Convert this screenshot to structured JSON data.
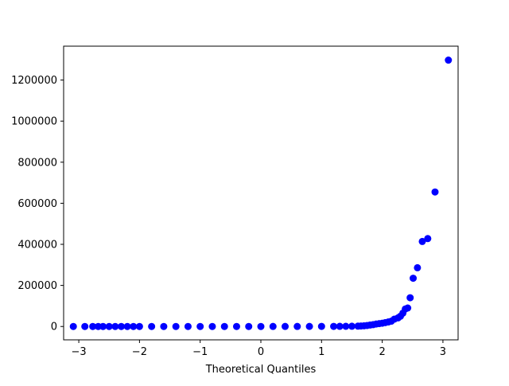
{
  "chart_data": {
    "type": "scatter",
    "title": "",
    "xlabel": "Theoretical Quantiles",
    "ylabel": "",
    "xlim": [
      -3.25,
      3.25
    ],
    "ylim": [
      -65000,
      1365000
    ],
    "xticks": [
      -3,
      -2,
      -1,
      0,
      1,
      2,
      3
    ],
    "xtick_labels": [
      "−3",
      "−2",
      "−1",
      "0",
      "1",
      "2",
      "3"
    ],
    "yticks": [
      0,
      200000,
      400000,
      600000,
      800000,
      1000000,
      1200000
    ],
    "ytick_labels": [
      "0",
      "200000",
      "400000",
      "600000",
      "800000",
      "1000000",
      "1200000"
    ],
    "grid": false,
    "marker_color": "#0000ff",
    "series": [
      {
        "points": [
          [
            3.09,
            1297000
          ],
          [
            2.87,
            655000
          ],
          [
            2.75,
            428000
          ],
          [
            2.66,
            414000
          ],
          [
            2.58,
            286000
          ],
          [
            2.51,
            235000
          ],
          [
            2.46,
            140000
          ],
          [
            2.42,
            90000
          ],
          [
            2.38,
            85000
          ],
          [
            2.34,
            65000
          ],
          [
            2.3,
            50000
          ],
          [
            2.26,
            42000
          ],
          [
            2.2,
            36000
          ],
          [
            2.15,
            26000
          ],
          [
            2.1,
            22000
          ],
          [
            2.05,
            19000
          ],
          [
            2.0,
            16000
          ],
          [
            1.95,
            14000
          ],
          [
            1.9,
            12000
          ],
          [
            1.85,
            9000
          ],
          [
            1.8,
            7000
          ],
          [
            1.75,
            5000
          ],
          [
            1.7,
            3500
          ],
          [
            1.65,
            2500
          ],
          [
            1.6,
            1800
          ],
          [
            1.5,
            1200
          ],
          [
            1.4,
            900
          ],
          [
            1.3,
            700
          ],
          [
            1.2,
            600
          ],
          [
            1.0,
            500
          ],
          [
            0.8,
            400
          ],
          [
            0.6,
            300
          ],
          [
            0.4,
            250
          ],
          [
            0.2,
            200
          ],
          [
            0.0,
            150
          ],
          [
            -0.2,
            120
          ],
          [
            -0.4,
            100
          ],
          [
            -0.6,
            80
          ],
          [
            -0.8,
            60
          ],
          [
            -1.0,
            50
          ],
          [
            -1.2,
            40
          ],
          [
            -1.4,
            30
          ],
          [
            -1.6,
            20
          ],
          [
            -1.8,
            15
          ],
          [
            -2.0,
            10
          ],
          [
            -2.1,
            8
          ],
          [
            -2.2,
            6
          ],
          [
            -2.3,
            5
          ],
          [
            -2.4,
            4
          ],
          [
            -2.5,
            3
          ],
          [
            -2.6,
            2
          ],
          [
            -2.68,
            2
          ],
          [
            -2.77,
            1
          ],
          [
            -2.9,
            1
          ],
          [
            -3.09,
            0
          ]
        ]
      }
    ]
  }
}
